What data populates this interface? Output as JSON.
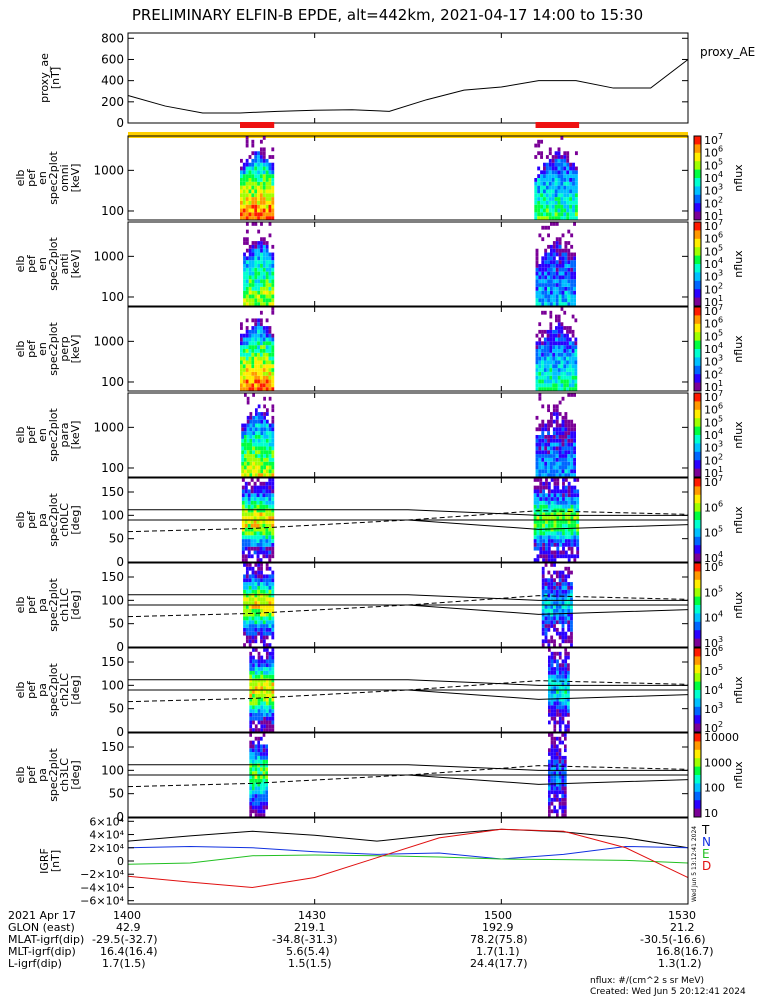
{
  "title": "PRELIMINARY ELFIN-B EPDE, alt=442km, 2021-04-17 14:00 to 15:30",
  "colors": {
    "axis": "#000000",
    "rainbow": [
      "#7a0097",
      "#2a00ff",
      "#0066ff",
      "#00c0ff",
      "#00ffd0",
      "#00ff40",
      "#a0ff00",
      "#ffee00",
      "#ff9900",
      "#ff1a00"
    ],
    "science_bar": "#ee1111",
    "orbit_bar": "#ffd000",
    "T": "#000000",
    "N": "#1030e0",
    "E": "#22c022",
    "D": "#e01010"
  },
  "chart_data": [
    {
      "type": "line",
      "name": "proxy_ae",
      "ylabel_lines": [
        "proxy_ae",
        "[nT]"
      ],
      "legend": "proxy_AE",
      "ylim": [
        0,
        850
      ],
      "yticks": [
        "0",
        "200",
        "400",
        "600",
        "800"
      ],
      "ytick_vals": [
        0,
        200,
        400,
        600,
        800
      ],
      "x_minutes": [
        0,
        6,
        12,
        18,
        24,
        30,
        36,
        42,
        48,
        54,
        60,
        66,
        72,
        78,
        84,
        90
      ],
      "values": [
        260,
        160,
        95,
        95,
        110,
        120,
        125,
        110,
        220,
        310,
        340,
        400,
        400,
        330,
        330,
        600
      ]
    },
    {
      "type": "bar",
      "name": "status_bars",
      "segments": [
        {
          "color": "science",
          "start_min": 18,
          "end_min": 23.5,
          "row": "top"
        },
        {
          "color": "science",
          "start_min": 65.5,
          "end_min": 72.5,
          "row": "top"
        },
        {
          "color": "orbit",
          "start_min": 0,
          "end_min": 90,
          "row": "bottom"
        }
      ]
    },
    {
      "type": "heatmap",
      "name": "omni",
      "ylabel_lines": [
        "elb",
        "pef",
        "en",
        "spec2plot",
        "omni",
        "[keV]"
      ],
      "yscale": "log",
      "ylim": [
        60,
        7000
      ],
      "yticks": [
        "100",
        "1000"
      ],
      "ytick_vals": [
        100,
        1000
      ],
      "cbar_label": "nflux",
      "cbar_ticks": [
        "10",
        "10",
        "10",
        "10",
        "10",
        "10",
        "10"
      ],
      "cbar_exps": [
        "1",
        "2",
        "3",
        "4",
        "5",
        "6",
        "7"
      ],
      "cbar_range": [
        1,
        7
      ],
      "blobs": [
        {
          "x_min": 18.0,
          "x_max": 23.5,
          "peak": 0.95
        },
        {
          "x_min": 65.3,
          "x_max": 72.3,
          "peak": 0.55
        }
      ]
    },
    {
      "type": "heatmap",
      "name": "anti",
      "ylabel_lines": [
        "elb",
        "pef",
        "en",
        "spec2plot",
        "anti",
        "[keV]"
      ],
      "yscale": "log",
      "ylim": [
        60,
        7000
      ],
      "yticks": [
        "100",
        "1000"
      ],
      "ytick_vals": [
        100,
        1000
      ],
      "cbar_label": "nflux",
      "cbar_ticks": [
        "10",
        "10",
        "10",
        "10",
        "10",
        "10",
        "10"
      ],
      "cbar_exps": [
        "1",
        "2",
        "3",
        "4",
        "5",
        "6",
        "7"
      ],
      "cbar_range": [
        1,
        7
      ],
      "blobs": [
        {
          "x_min": 18.5,
          "x_max": 23.5,
          "peak": 0.7
        },
        {
          "x_min": 65.5,
          "x_max": 72.0,
          "peak": 0.35
        }
      ]
    },
    {
      "type": "heatmap",
      "name": "perp",
      "ylabel_lines": [
        "elb",
        "pef",
        "en",
        "spec2plot",
        "perp",
        "[keV]"
      ],
      "yscale": "log",
      "ylim": [
        60,
        7000
      ],
      "yticks": [
        "100",
        "1000"
      ],
      "ytick_vals": [
        100,
        1000
      ],
      "cbar_label": "nflux",
      "cbar_ticks": [
        "10",
        "10",
        "10",
        "10",
        "10",
        "10",
        "10"
      ],
      "cbar_exps": [
        "1",
        "2",
        "3",
        "4",
        "5",
        "6",
        "7"
      ],
      "cbar_range": [
        1,
        7
      ],
      "blobs": [
        {
          "x_min": 18.0,
          "x_max": 23.5,
          "peak": 0.92
        },
        {
          "x_min": 65.5,
          "x_max": 72.2,
          "peak": 0.5
        }
      ]
    },
    {
      "type": "heatmap",
      "name": "para",
      "ylabel_lines": [
        "elb",
        "pef",
        "en",
        "spec2plot",
        "para",
        "[keV]"
      ],
      "yscale": "log",
      "ylim": [
        60,
        7000
      ],
      "yticks": [
        "100",
        "1000"
      ],
      "ytick_vals": [
        100,
        1000
      ],
      "cbar_label": "nflux",
      "cbar_ticks": [
        "10",
        "10",
        "10",
        "10",
        "10",
        "10",
        "10"
      ],
      "cbar_exps": [
        "1",
        "2",
        "3",
        "4",
        "5",
        "6",
        "7"
      ],
      "cbar_range": [
        1,
        7
      ],
      "blobs": [
        {
          "x_min": 18.2,
          "x_max": 23.5,
          "peak": 0.72
        },
        {
          "x_min": 65.5,
          "x_max": 72.0,
          "peak": 0.3
        }
      ]
    },
    {
      "type": "heatmap",
      "name": "ch0LC",
      "ylabel_lines": [
        "elb",
        "pef",
        "pa",
        "spec2plot",
        "ch0LC",
        "[deg]"
      ],
      "yscale": "linear",
      "ylim": [
        0,
        180
      ],
      "yticks": [
        "0",
        "50",
        "100",
        "150"
      ],
      "ytick_vals": [
        0,
        50,
        100,
        150
      ],
      "cbar_label": "nflux",
      "cbar_ticks": [
        "10",
        "10",
        "10",
        "10"
      ],
      "cbar_exps": [
        "4",
        "5",
        "6",
        "7"
      ],
      "cbar_range": [
        4,
        7
      ],
      "blobs": [
        {
          "x_min": 18.3,
          "x_max": 23.5,
          "peak": 0.75
        },
        {
          "x_min": 65.2,
          "x_max": 72.5,
          "peak": 0.6
        }
      ],
      "lines": {
        "upper": [
          [
            0,
            112
          ],
          [
            45,
            112
          ],
          [
            66,
            100
          ],
          [
            90,
            100
          ]
        ],
        "mid": [
          [
            0,
            90
          ],
          [
            45,
            90
          ],
          [
            66,
            90
          ],
          [
            90,
            90
          ]
        ],
        "lower": [
          [
            0,
            90
          ],
          [
            45,
            90
          ],
          [
            66,
            70
          ],
          [
            90,
            80
          ]
        ],
        "dashed": [
          [
            0,
            65
          ],
          [
            20,
            72
          ],
          [
            45,
            90
          ],
          [
            66,
            110
          ],
          [
            90,
            102
          ]
        ]
      }
    },
    {
      "type": "heatmap",
      "name": "ch1LC",
      "ylabel_lines": [
        "elb",
        "pef",
        "pa",
        "spec2plot",
        "ch1LC",
        "[deg]"
      ],
      "yscale": "linear",
      "ylim": [
        0,
        180
      ],
      "yticks": [
        "0",
        "50",
        "100",
        "150"
      ],
      "ytick_vals": [
        0,
        50,
        100,
        150
      ],
      "cbar_label": "nflux",
      "cbar_ticks": [
        "10",
        "10",
        "10",
        "10"
      ],
      "cbar_exps": [
        "3",
        "4",
        "5",
        "6"
      ],
      "cbar_range": [
        3,
        6
      ],
      "blobs": [
        {
          "x_min": 18.5,
          "x_max": 23.5,
          "peak": 0.72
        },
        {
          "x_min": 66.5,
          "x_max": 71.5,
          "peak": 0.35
        }
      ],
      "lines": {
        "upper": [
          [
            0,
            112
          ],
          [
            45,
            112
          ],
          [
            66,
            100
          ],
          [
            90,
            100
          ]
        ],
        "mid": [
          [
            0,
            90
          ],
          [
            45,
            90
          ],
          [
            66,
            90
          ],
          [
            90,
            90
          ]
        ],
        "lower": [
          [
            0,
            90
          ],
          [
            45,
            90
          ],
          [
            66,
            70
          ],
          [
            90,
            80
          ]
        ],
        "dashed": [
          [
            0,
            65
          ],
          [
            20,
            72
          ],
          [
            45,
            90
          ],
          [
            66,
            110
          ],
          [
            90,
            102
          ]
        ]
      }
    },
    {
      "type": "heatmap",
      "name": "ch2LC",
      "ylabel_lines": [
        "elb",
        "pef",
        "pa",
        "spec2plot",
        "ch2LC",
        "[deg]"
      ],
      "yscale": "linear",
      "ylim": [
        0,
        180
      ],
      "yticks": [
        "0",
        "50",
        "100",
        "150"
      ],
      "ytick_vals": [
        0,
        50,
        100,
        150
      ],
      "cbar_label": "nflux",
      "cbar_ticks": [
        "10",
        "10",
        "10",
        "10",
        "10"
      ],
      "cbar_exps": [
        "2",
        "3",
        "4",
        "5",
        "6"
      ],
      "cbar_range": [
        2,
        6
      ],
      "blobs": [
        {
          "x_min": 19.5,
          "x_max": 23.5,
          "peak": 0.75
        },
        {
          "x_min": 67.5,
          "x_max": 71.0,
          "peak": 0.4
        }
      ],
      "lines": {
        "upper": [
          [
            0,
            112
          ],
          [
            45,
            112
          ],
          [
            66,
            100
          ],
          [
            90,
            100
          ]
        ],
        "mid": [
          [
            0,
            90
          ],
          [
            45,
            90
          ],
          [
            66,
            90
          ],
          [
            90,
            90
          ]
        ],
        "lower": [
          [
            0,
            90
          ],
          [
            45,
            90
          ],
          [
            66,
            70
          ],
          [
            90,
            80
          ]
        ],
        "dashed": [
          [
            0,
            65
          ],
          [
            20,
            72
          ],
          [
            45,
            90
          ],
          [
            66,
            110
          ],
          [
            90,
            102
          ]
        ]
      }
    },
    {
      "type": "heatmap",
      "name": "ch3LC",
      "ylabel_lines": [
        "elb",
        "pef",
        "pa",
        "spec2plot",
        "ch3LC",
        "[deg]"
      ],
      "yscale": "linear",
      "ylim": [
        0,
        180
      ],
      "yticks": [
        "0",
        "50",
        "100",
        "150"
      ],
      "ytick_vals": [
        0,
        50,
        100,
        150
      ],
      "cbar_label": "nflux",
      "cbar_ticks": [
        "10",
        "100",
        "1000",
        "10000"
      ],
      "cbar_exps": [
        "",
        "",
        "",
        ""
      ],
      "cbar_range": [
        1,
        4
      ],
      "blobs": [
        {
          "x_min": 19.5,
          "x_max": 22.5,
          "peak": 0.6
        },
        {
          "x_min": 67.5,
          "x_max": 70.5,
          "peak": 0.25
        }
      ],
      "lines": {
        "upper": [
          [
            0,
            112
          ],
          [
            45,
            112
          ],
          [
            66,
            100
          ],
          [
            90,
            100
          ]
        ],
        "mid": [
          [
            0,
            90
          ],
          [
            45,
            90
          ],
          [
            66,
            90
          ],
          [
            90,
            90
          ]
        ],
        "lower": [
          [
            0,
            90
          ],
          [
            45,
            90
          ],
          [
            66,
            70
          ],
          [
            90,
            80
          ]
        ],
        "dashed": [
          [
            0,
            65
          ],
          [
            20,
            72
          ],
          [
            45,
            90
          ],
          [
            66,
            110
          ],
          [
            90,
            102
          ]
        ]
      }
    },
    {
      "type": "line",
      "name": "IGRF",
      "ylabel_lines": [
        "IGRF",
        "[nT]"
      ],
      "ylim": [
        -65000,
        65000
      ],
      "yticks": [
        "−6×10⁴",
        "−4×10⁴",
        "−2×10⁴",
        "0",
        "2×10⁴",
        "4×10⁴",
        "6×10⁴"
      ],
      "ytick_vals": [
        -60000,
        -40000,
        -20000,
        0,
        20000,
        40000,
        60000
      ],
      "series": [
        {
          "name": "T",
          "color": "T",
          "x_minutes": [
            0,
            10,
            20,
            30,
            40,
            50,
            60,
            70,
            80,
            90
          ],
          "values": [
            30000,
            38000,
            45000,
            39000,
            30000,
            40000,
            48000,
            44000,
            35000,
            20000
          ]
        },
        {
          "name": "N",
          "color": "N",
          "x_minutes": [
            0,
            10,
            20,
            30,
            40,
            50,
            60,
            70,
            80,
            90
          ],
          "values": [
            20000,
            22000,
            20000,
            14000,
            10000,
            12000,
            3000,
            10000,
            22000,
            20000
          ]
        },
        {
          "name": "E",
          "color": "E",
          "x_minutes": [
            0,
            10,
            20,
            30,
            40,
            50,
            60,
            70,
            80,
            90
          ],
          "values": [
            -5000,
            -3000,
            8000,
            9000,
            8000,
            6000,
            3000,
            2000,
            1000,
            -3000
          ]
        },
        {
          "name": "D",
          "color": "D",
          "x_minutes": [
            0,
            10,
            20,
            30,
            40,
            50,
            60,
            70,
            80,
            90
          ],
          "values": [
            -23000,
            -32000,
            -40000,
            -25000,
            5000,
            35000,
            48000,
            45000,
            20000,
            -25000
          ]
        }
      ]
    }
  ],
  "x_axis": {
    "tick_minutes": [
      0,
      30,
      60,
      90
    ],
    "rows": [
      {
        "label": "2021 Apr 17",
        "vals": [
          "1400",
          "1430",
          "1500",
          "1530"
        ]
      },
      {
        "label": "GLON (east)",
        "vals": [
          "42.9",
          "219.1",
          "192.9",
          "21.2"
        ]
      },
      {
        "label": "MLAT-igrf(dip)",
        "vals": [
          "-29.5(-32.7)",
          "-34.8(-31.3)",
          "78.2(75.8)",
          "-30.5(-16.6)"
        ]
      },
      {
        "label": "MLT-igrf(dip)",
        "vals": [
          "16.4(16.4)",
          "5.6(5.4)",
          "1.7(1.1)",
          "16.8(16.7)"
        ]
      },
      {
        "label": "L-igrf(dip)",
        "vals": [
          "1.7(1.5)",
          "1.5(1.5)",
          "24.4(17.7)",
          "1.3(1.2)"
        ]
      }
    ]
  },
  "footer": {
    "units": "nflux: #/(cm^2 s sr MeV)",
    "created": "Created: Wed Jun  5 20:12:41 2024",
    "side_stamp": "Wed Jun  5 13:12:41 2024"
  }
}
